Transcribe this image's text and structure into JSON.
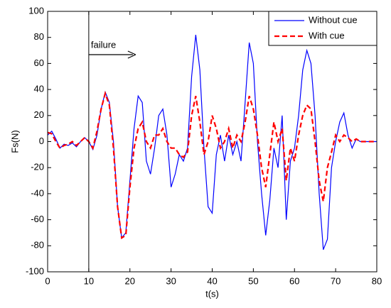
{
  "chart_data": {
    "type": "line",
    "xlabel": "t(s)",
    "ylabel": "Fs(N)",
    "x": [
      0,
      1,
      2,
      3,
      4,
      5,
      6,
      7,
      8,
      9,
      10,
      11,
      12,
      13,
      14,
      15,
      16,
      17,
      18,
      19,
      20,
      21,
      22,
      23,
      24,
      25,
      26,
      27,
      28,
      29,
      30,
      31,
      32,
      33,
      34,
      35,
      36,
      37,
      38,
      39,
      40,
      41,
      42,
      43,
      44,
      45,
      46,
      47,
      48,
      49,
      50,
      51,
      52,
      53,
      54,
      55,
      56,
      57,
      58,
      59,
      60,
      61,
      62,
      63,
      64,
      65,
      66,
      67,
      68,
      69,
      70,
      71,
      72,
      73,
      74,
      75,
      76,
      77,
      78,
      79,
      80
    ],
    "series": [
      {
        "name": "Without cue",
        "color": "#0000ff",
        "linestyle": "solid",
        "values": [
          5,
          8,
          2,
          -5,
          -2,
          -3,
          -1,
          -4,
          0,
          3,
          0,
          -6,
          5,
          25,
          38,
          30,
          0,
          -50,
          -74,
          -70,
          -30,
          10,
          35,
          30,
          -15,
          -25,
          -5,
          20,
          25,
          5,
          -35,
          -25,
          -10,
          -15,
          -5,
          50,
          82,
          55,
          -5,
          -50,
          -55,
          -10,
          5,
          -15,
          5,
          -10,
          0,
          -15,
          30,
          76,
          60,
          0,
          -40,
          -72,
          -45,
          -5,
          -20,
          20,
          -60,
          -15,
          -5,
          20,
          55,
          70,
          60,
          20,
          -40,
          -83,
          -75,
          -20,
          0,
          15,
          22,
          5,
          -5,
          2,
          0,
          0,
          0,
          0,
          0
        ]
      },
      {
        "name": "With cue",
        "color": "#ff0000",
        "linestyle": "dashed",
        "values": [
          7,
          6,
          0,
          -5,
          -3,
          -2,
          0,
          -3,
          0,
          3,
          0,
          -5,
          8,
          25,
          37,
          28,
          -5,
          -50,
          -74,
          -72,
          -35,
          -5,
          10,
          15,
          0,
          -5,
          5,
          5,
          10,
          0,
          -5,
          -5,
          -10,
          -12,
          -8,
          20,
          35,
          15,
          -10,
          0,
          20,
          10,
          -5,
          0,
          10,
          -5,
          5,
          0,
          15,
          35,
          25,
          5,
          -20,
          -35,
          -10,
          15,
          0,
          10,
          -30,
          -5,
          -15,
          5,
          20,
          28,
          25,
          0,
          -30,
          -46,
          -20,
          -8,
          5,
          0,
          5,
          3,
          0,
          2,
          0,
          0,
          0,
          0,
          0
        ]
      }
    ],
    "annotation": {
      "text": "failure",
      "x": 10
    },
    "xlim": [
      0,
      80
    ],
    "xticks": [
      0,
      10,
      20,
      30,
      40,
      50,
      60,
      70,
      80
    ],
    "ylim": [
      -100,
      100
    ],
    "yticks": [
      -100,
      -80,
      -60,
      -40,
      -20,
      0,
      20,
      40,
      60,
      80,
      100
    ],
    "grid": false,
    "legend": "upper right"
  }
}
